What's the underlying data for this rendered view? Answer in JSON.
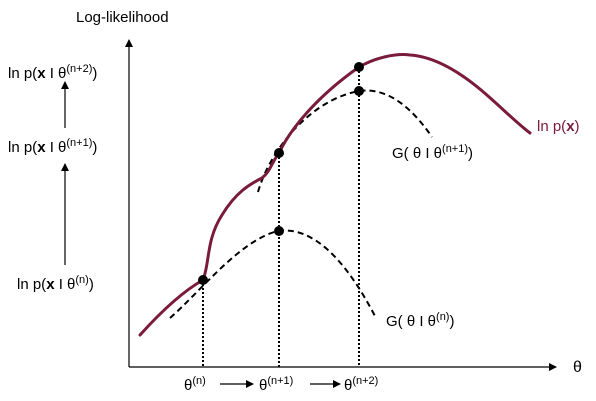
{
  "diagram": {
    "y_axis_label": "Log-likelihood",
    "x_axis_label": "θ",
    "curve_label": {
      "prefix": "ln p(",
      "bold": "x",
      "suffix": ")"
    },
    "g_upper": {
      "prefix": "G( θ I θ",
      "sup": "(n+1)",
      "suffix": ")"
    },
    "g_lower": {
      "prefix": "G( θ I θ",
      "sup": "(n)",
      "suffix": ")"
    },
    "left_labels": [
      {
        "pre": "ln p(",
        "bold": "x",
        "mid": " I θ",
        "sup": "(n+2)",
        "post": ")"
      },
      {
        "pre": "ln p(",
        "bold": "x",
        "mid": " I θ",
        "sup": "(n+1)",
        "post": ")"
      },
      {
        "pre": "ln p(",
        "bold": "x",
        "mid": " I θ",
        "sup": "(n)",
        "post": ")"
      }
    ],
    "theta_labels": [
      {
        "base": "θ",
        "sup": "(n)"
      },
      {
        "base": "θ",
        "sup": "(n+1)"
      },
      {
        "base": "θ",
        "sup": "(n+2)"
      }
    ],
    "colors": {
      "likelihood_curve": "#7a1a3c",
      "axes": "#000000",
      "bound_curves": "#000000",
      "points": "#000000"
    }
  }
}
